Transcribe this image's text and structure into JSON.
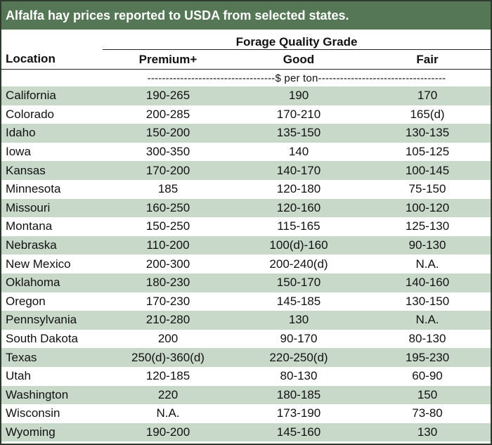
{
  "title": "Alfalfa hay prices reported to USDA from selected states.",
  "group_header": "Forage Quality Grade",
  "location_header": "Location",
  "columns": [
    "Premium+",
    "Good",
    "Fair"
  ],
  "units": "-----------------------------------$ per ton-----------------------------------",
  "colors": {
    "title_bar": "#557755",
    "stripe": "#c9d9c9"
  },
  "rows": [
    {
      "location": "California",
      "premium": "190-265",
      "good": "190",
      "fair": "170"
    },
    {
      "location": "Colorado",
      "premium": "200-285",
      "good": "170-210",
      "fair": "165(d)"
    },
    {
      "location": "Idaho",
      "premium": "150-200",
      "good": "135-150",
      "fair": "130-135"
    },
    {
      "location": "Iowa",
      "premium": "300-350",
      "good": "140",
      "fair": "105-125"
    },
    {
      "location": "Kansas",
      "premium": "170-200",
      "good": "140-170",
      "fair": "100-145"
    },
    {
      "location": "Minnesota",
      "premium": "185",
      "good": "120-180",
      "fair": "75-150"
    },
    {
      "location": "Missouri",
      "premium": "160-250",
      "good": "120-160",
      "fair": "100-120"
    },
    {
      "location": "Montana",
      "premium": "150-250",
      "good": "115-165",
      "fair": "125-130"
    },
    {
      "location": "Nebraska",
      "premium": "110-200",
      "good": "100(d)-160",
      "fair": "90-130"
    },
    {
      "location": "New Mexico",
      "premium": "200-300",
      "good": "200-240(d)",
      "fair": "N.A."
    },
    {
      "location": "Oklahoma",
      "premium": "180-230",
      "good": "150-170",
      "fair": "140-160"
    },
    {
      "location": "Oregon",
      "premium": "170-230",
      "good": "145-185",
      "fair": "130-150"
    },
    {
      "location": "Pennsylvania",
      "premium": "210-280",
      "good": "130",
      "fair": "N.A."
    },
    {
      "location": "South Dakota",
      "premium": "200",
      "good": "90-170",
      "fair": "80-130"
    },
    {
      "location": "Texas",
      "premium": "250(d)-360(d)",
      "good": "220-250(d)",
      "fair": "195-230"
    },
    {
      "location": "Utah",
      "premium": "120-185",
      "good": "80-130",
      "fair": "60-90"
    },
    {
      "location": "Washington",
      "premium": "220",
      "good": "180-185",
      "fair": "150"
    },
    {
      "location": "Wisconsin",
      "premium": "N.A.",
      "good": "173-190",
      "fair": "73-80"
    },
    {
      "location": "Wyoming",
      "premium": "190-200",
      "good": "145-160",
      "fair": "130"
    }
  ]
}
